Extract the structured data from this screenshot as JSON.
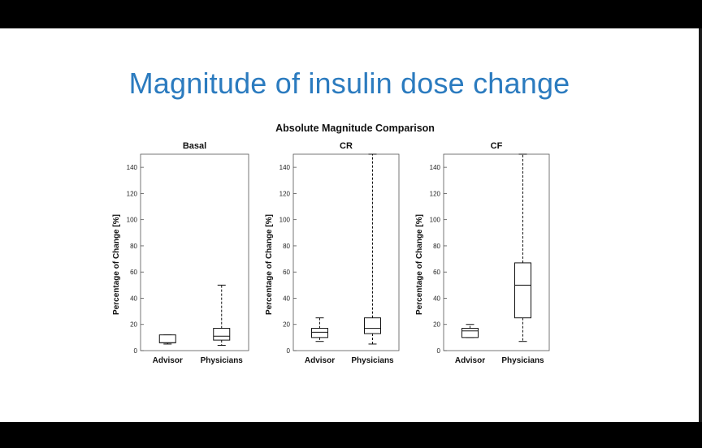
{
  "slide": {
    "title": "Magnitude of insulin dose change"
  },
  "chart_data": {
    "type": "boxplot",
    "title": "Absolute Magnitude Comparison",
    "panels": [
      {
        "title": "Basal",
        "ylabel": "Percentage of Change [%]",
        "ylim": [
          0,
          150
        ],
        "yticks": [
          0,
          20,
          40,
          60,
          80,
          100,
          120,
          140
        ],
        "categories": [
          "Advisor",
          "Physicians"
        ],
        "boxes": [
          {
            "min": 5,
            "q1": 6,
            "median": 6,
            "q3": 12,
            "max": 12
          },
          {
            "min": 4,
            "q1": 8,
            "median": 11,
            "q3": 17,
            "max": 50
          }
        ]
      },
      {
        "title": "CR",
        "ylabel": "Percentage of Change [%]",
        "ylim": [
          0,
          150
        ],
        "yticks": [
          0,
          20,
          40,
          60,
          80,
          100,
          120,
          140
        ],
        "categories": [
          "Advisor",
          "Physicians"
        ],
        "boxes": [
          {
            "min": 7,
            "q1": 10,
            "median": 14,
            "q3": 17,
            "max": 25
          },
          {
            "min": 5,
            "q1": 13,
            "median": 17,
            "q3": 25,
            "max": 150
          }
        ]
      },
      {
        "title": "CF",
        "ylabel": "Percentage of Change [%]",
        "ylim": [
          0,
          150
        ],
        "yticks": [
          0,
          20,
          40,
          60,
          80,
          100,
          120,
          140
        ],
        "categories": [
          "Advisor",
          "Physicians"
        ],
        "boxes": [
          {
            "min": 10,
            "q1": 10,
            "median": 15,
            "q3": 17,
            "max": 20
          },
          {
            "min": 7,
            "q1": 25,
            "median": 50,
            "q3": 67,
            "max": 150
          }
        ]
      }
    ]
  }
}
